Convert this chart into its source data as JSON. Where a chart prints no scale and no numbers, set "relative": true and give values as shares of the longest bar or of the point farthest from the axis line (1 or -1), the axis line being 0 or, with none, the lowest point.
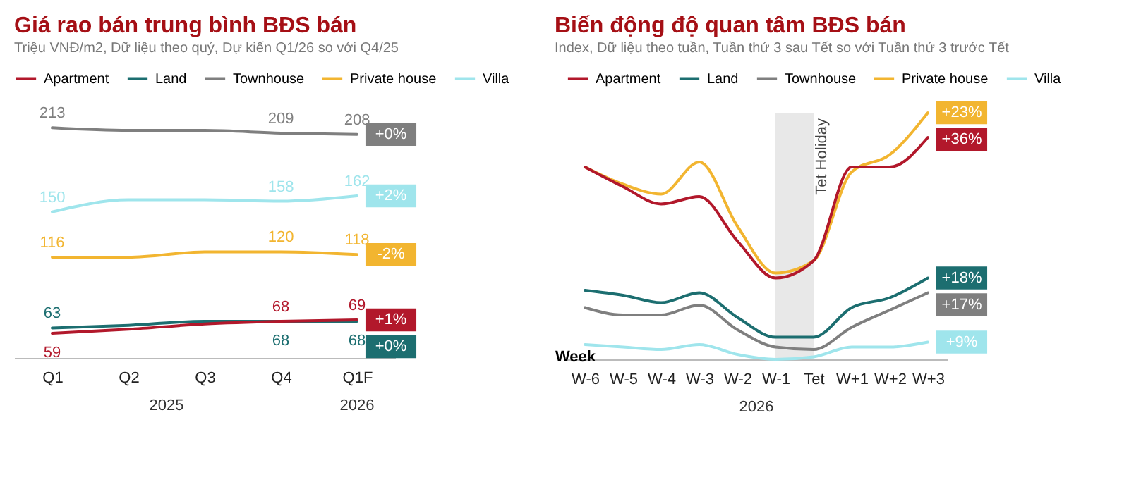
{
  "chart_data": [
    {
      "type": "line",
      "title": "Giá rao bán trung bình BĐS bán",
      "subtitle": "Triệu VNĐ/m2, Dữ liệu theo quý, Dự kiến Q1/26 so với Q4/25",
      "categories": [
        "Q1",
        "Q2",
        "Q3",
        "Q4",
        "Q1F"
      ],
      "legend": "top",
      "tick_labels": "x",
      "series": [
        {
          "name": "Apartment",
          "color": "#b2182b",
          "values": [
            59,
            62,
            66,
            68,
            69
          ],
          "value_labels": [
            "59",
            null,
            null,
            "68",
            "69"
          ]
        },
        {
          "name": "Land",
          "color": "#1c6e70",
          "values": [
            63,
            65,
            68,
            68,
            68
          ],
          "value_labels": [
            "63",
            null,
            null,
            "68",
            "68"
          ]
        },
        {
          "name": "Townhouse",
          "color": "#7f7f7f",
          "values": [
            213,
            211,
            211,
            209,
            208
          ],
          "value_labels": [
            "213",
            null,
            null,
            "209",
            "208"
          ]
        },
        {
          "name": "Private house",
          "color": "#f2b530",
          "values": [
            116,
            116,
            120,
            120,
            118
          ],
          "value_labels": [
            "116",
            null,
            null,
            "120",
            "118"
          ]
        },
        {
          "name": "Villa",
          "color": "#9fe5ec",
          "values": [
            150,
            159,
            159,
            158,
            162
          ],
          "value_labels": [
            "150",
            null,
            null,
            "158",
            "162"
          ]
        }
      ],
      "annotations": [
        {
          "text": "+0%",
          "x": "Q1F",
          "y": 208
        },
        {
          "text": "+2%",
          "x": "Q1F",
          "y": 162
        },
        {
          "text": "-2%",
          "x": "Q1F",
          "y": 118
        },
        {
          "text": "+1%",
          "x": "Q1F",
          "y": 69
        },
        {
          "text": "+0%",
          "x": "Q1F",
          "y": 68
        },
        "2025",
        "2026"
      ]
    },
    {
      "type": "line",
      "title": "Biến động độ quan tâm BĐS bán",
      "subtitle": "Index, Dữ liệu theo tuần, Tuần thứ 3 sau Tết so với Tuần thứ 3 trước Tết",
      "xlabel": "Week",
      "categories": [
        "W-6",
        "W-5",
        "W-4",
        "W-3",
        "W-2",
        "W-1",
        "Tet",
        "W+1",
        "W+2",
        "W+3"
      ],
      "legend": "top",
      "relative": true,
      "series": [
        {
          "name": "Apartment",
          "color": "#b2182b",
          "values": [
            0.78,
            0.7,
            0.63,
            0.66,
            0.48,
            0.33,
            0.4,
            0.78,
            0.78,
            0.9
          ]
        },
        {
          "name": "Land",
          "color": "#1c6e70",
          "values": [
            0.28,
            0.26,
            0.23,
            0.27,
            0.17,
            0.09,
            0.09,
            0.21,
            0.25,
            0.33
          ]
        },
        {
          "name": "Townhouse",
          "color": "#7f7f7f",
          "values": [
            0.21,
            0.18,
            0.18,
            0.22,
            0.12,
            0.05,
            0.04,
            0.13,
            0.2,
            0.27
          ]
        },
        {
          "name": "Private house",
          "color": "#f2b530",
          "values": [
            0.78,
            0.71,
            0.67,
            0.8,
            0.54,
            0.35,
            0.4,
            0.76,
            0.83,
            1
          ]
        },
        {
          "name": "Villa",
          "color": "#9fe5ec",
          "values": [
            0.06,
            0.05,
            0.04,
            0.06,
            0.02,
            0,
            0.01,
            0.05,
            0.05,
            0.07
          ]
        }
      ],
      "bands": [
        {
          "axis": "x",
          "from": "W-1",
          "to": "Tet",
          "label": "Tet Holiday",
          "color": "#d9d9d9"
        }
      ],
      "annotations": [
        {
          "text": "+23%",
          "x": "W+3",
          "y": 1
        },
        {
          "text": "+36%",
          "x": "W+3",
          "y": 0.9
        },
        {
          "text": "+18%",
          "x": "W+3",
          "y": 0.33
        },
        {
          "text": "+17%",
          "x": "W+3",
          "y": 0.27
        },
        {
          "text": "+9%",
          "x": "W+3",
          "y": 0.07
        },
        "2026"
      ]
    }
  ]
}
